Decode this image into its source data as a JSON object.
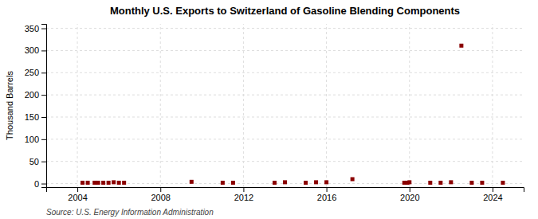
{
  "chart_data": {
    "type": "scatter",
    "title": "Monthly U.S. Exports to Switzerland of Gasoline Blending Components",
    "ylabel": "Thousand Barrels",
    "annotations": [
      "Source: U.S. Energy Information Administration"
    ],
    "x": [
      2004.25,
      2004.5,
      2004.83,
      2005.0,
      2005.25,
      2005.5,
      2005.75,
      2006.0,
      2006.25,
      2009.5,
      2011.0,
      2011.5,
      2013.5,
      2014.0,
      2015.0,
      2015.5,
      2016.0,
      2017.25,
      2019.75,
      2019.9,
      2020.0,
      2021.0,
      2021.5,
      2022.0,
      2022.5,
      2023.0,
      2023.5,
      2024.5
    ],
    "values": [
      2,
      2,
      2,
      2,
      2,
      2,
      3,
      2,
      2,
      4,
      2,
      2,
      2,
      3,
      2,
      3,
      3,
      10,
      2,
      2,
      3,
      2,
      2,
      3,
      311,
      2,
      2,
      2
    ],
    "color": "#8b0000",
    "marker": "square",
    "xlim": [
      2002.5,
      2025.5
    ],
    "ylim": [
      -8,
      360
    ],
    "xticks": [
      2004,
      2008,
      2012,
      2016,
      2020,
      2024
    ],
    "yticks": [
      0,
      50,
      100,
      150,
      200,
      250,
      300,
      350
    ],
    "grid": true
  }
}
